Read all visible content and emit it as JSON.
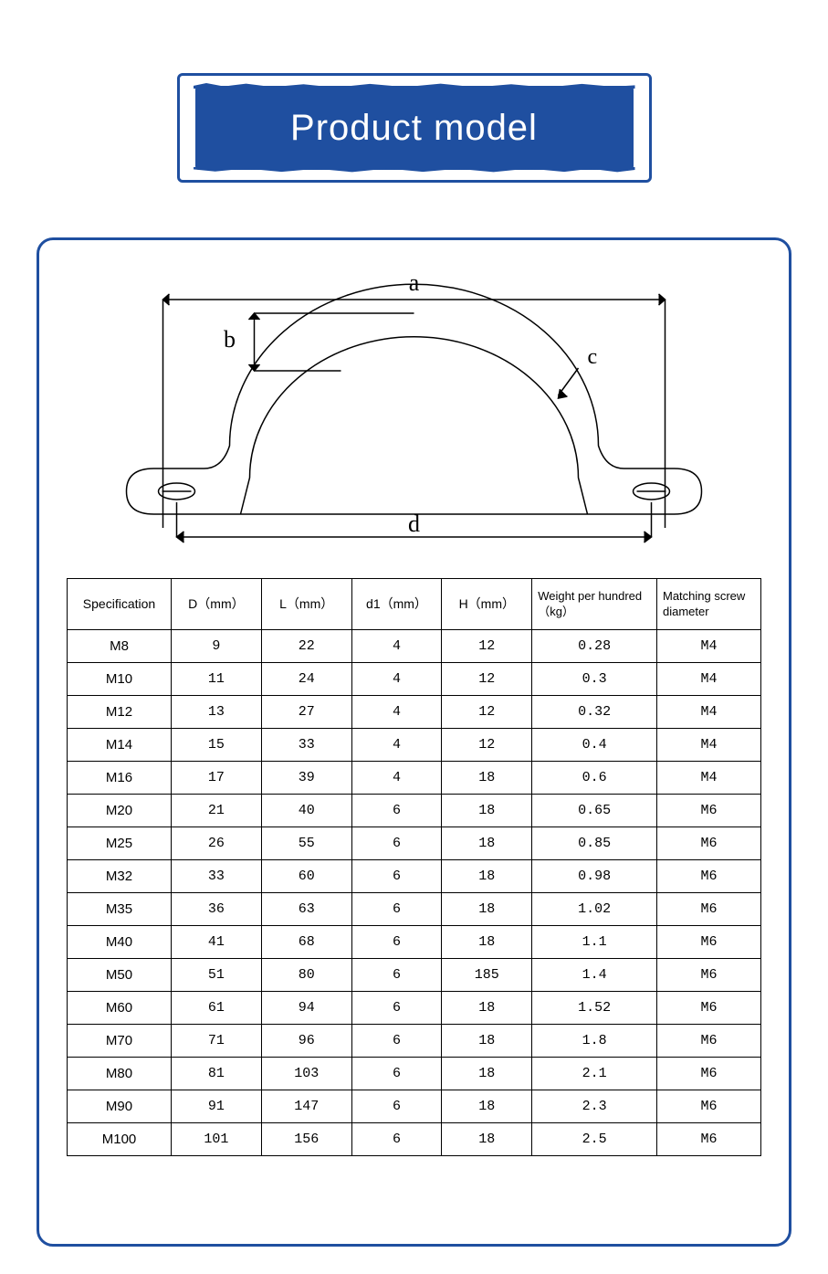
{
  "banner": {
    "title": "Product model"
  },
  "diagram": {
    "labels": {
      "a": "a",
      "b": "b",
      "c": "c",
      "d": "d"
    },
    "stroke": "#000000",
    "label_font": "serif",
    "label_size": 26
  },
  "table": {
    "columns": [
      "Specification",
      "D（mm）",
      "L（mm）",
      "d1（mm）",
      "H（mm）",
      "Weight per hundred（kg）",
      "Matching screw diameter"
    ],
    "rows": [
      [
        "M8",
        "9",
        "22",
        "4",
        "12",
        "0.28",
        "M4"
      ],
      [
        "M10",
        "11",
        "24",
        "4",
        "12",
        "0.3",
        "M4"
      ],
      [
        "M12",
        "13",
        "27",
        "4",
        "12",
        "0.32",
        "M4"
      ],
      [
        "M14",
        "15",
        "33",
        "4",
        "12",
        "0.4",
        "M4"
      ],
      [
        "M16",
        "17",
        "39",
        "4",
        "18",
        "0.6",
        "M4"
      ],
      [
        "M20",
        "21",
        "40",
        "6",
        "18",
        "0.65",
        "M6"
      ],
      [
        "M25",
        "26",
        "55",
        "6",
        "18",
        "0.85",
        "M6"
      ],
      [
        "M32",
        "33",
        "60",
        "6",
        "18",
        "0.98",
        "M6"
      ],
      [
        "M35",
        "36",
        "63",
        "6",
        "18",
        "1.02",
        "M6"
      ],
      [
        "M40",
        "41",
        "68",
        "6",
        "18",
        "1.1",
        "M6"
      ],
      [
        "M50",
        "51",
        "80",
        "6",
        "185",
        "1.4",
        "M6"
      ],
      [
        "M60",
        "61",
        "94",
        "6",
        "18",
        "1.52",
        "M6"
      ],
      [
        "M70",
        "71",
        "96",
        "6",
        "18",
        "1.8",
        "M6"
      ],
      [
        "M80",
        "81",
        "103",
        "6",
        "18",
        "2.1",
        "M6"
      ],
      [
        "M90",
        "91",
        "147",
        "6",
        "18",
        "2.3",
        "M6"
      ],
      [
        "M100",
        "101",
        "156",
        "6",
        "18",
        "2.5",
        "M6"
      ]
    ]
  },
  "colors": {
    "brand": "#1f4fa0",
    "border": "#000000",
    "background": "#ffffff"
  }
}
